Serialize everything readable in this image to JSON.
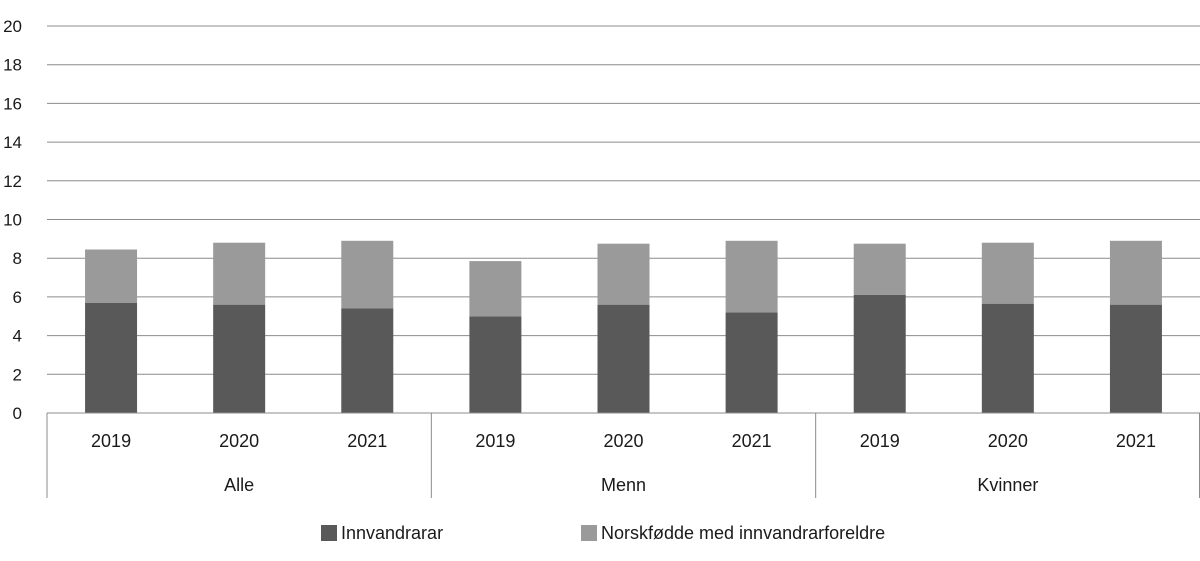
{
  "chart_data": {
    "type": "bar",
    "stacked": true,
    "groups": [
      {
        "label": "Alle",
        "categories": [
          "2019",
          "2020",
          "2021"
        ]
      },
      {
        "label": "Menn",
        "categories": [
          "2019",
          "2020",
          "2021"
        ]
      },
      {
        "label": "Kvinner",
        "categories": [
          "2019",
          "2020",
          "2021"
        ]
      }
    ],
    "series": [
      {
        "name": "Innvandrarar",
        "color": "#595959",
        "values": [
          5.7,
          5.6,
          5.4,
          5.0,
          5.6,
          5.2,
          6.1,
          5.65,
          5.6
        ]
      },
      {
        "name": "Norskfødde med innvandrarforeldre",
        "color": "#9a9a9a",
        "values": [
          2.75,
          3.2,
          3.5,
          2.85,
          3.15,
          3.7,
          2.65,
          3.15,
          3.3
        ]
      }
    ],
    "ylim": [
      0,
      20
    ],
    "yticks": [
      "0",
      "2",
      "4",
      "6",
      "8",
      "10",
      "12",
      "14",
      "16",
      "18",
      "20"
    ],
    "grid": true,
    "legend_position": "bottom"
  }
}
